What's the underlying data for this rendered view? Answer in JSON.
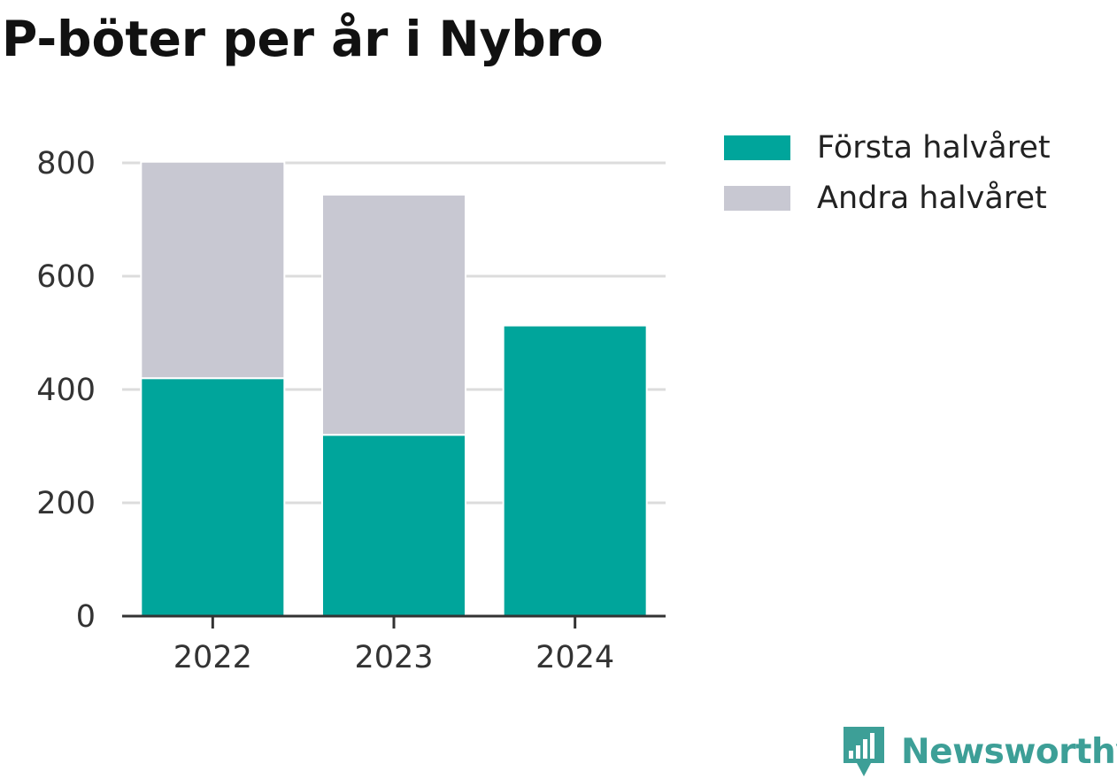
{
  "title": "P-böter per år i Nybro",
  "chart_data": {
    "type": "bar",
    "stacked": true,
    "categories": [
      "2022",
      "2023",
      "2024"
    ],
    "series": [
      {
        "name": "Första halvåret",
        "values": [
          420,
          320,
          513
        ],
        "color": "#00a59b"
      },
      {
        "name": "Andra halvåret",
        "values": [
          382,
          424,
          0
        ],
        "color": "#c8c8d2"
      }
    ],
    "ylim": [
      0,
      800
    ],
    "yticks": [
      "0",
      "200",
      "400",
      "600",
      "800"
    ],
    "xlabel": "",
    "ylabel": "",
    "grid": true,
    "legend_position": "top-right"
  },
  "brand": {
    "name": "Newsworthy",
    "icon": "newsworthy-logo-icon",
    "color": "#3d9f97"
  }
}
